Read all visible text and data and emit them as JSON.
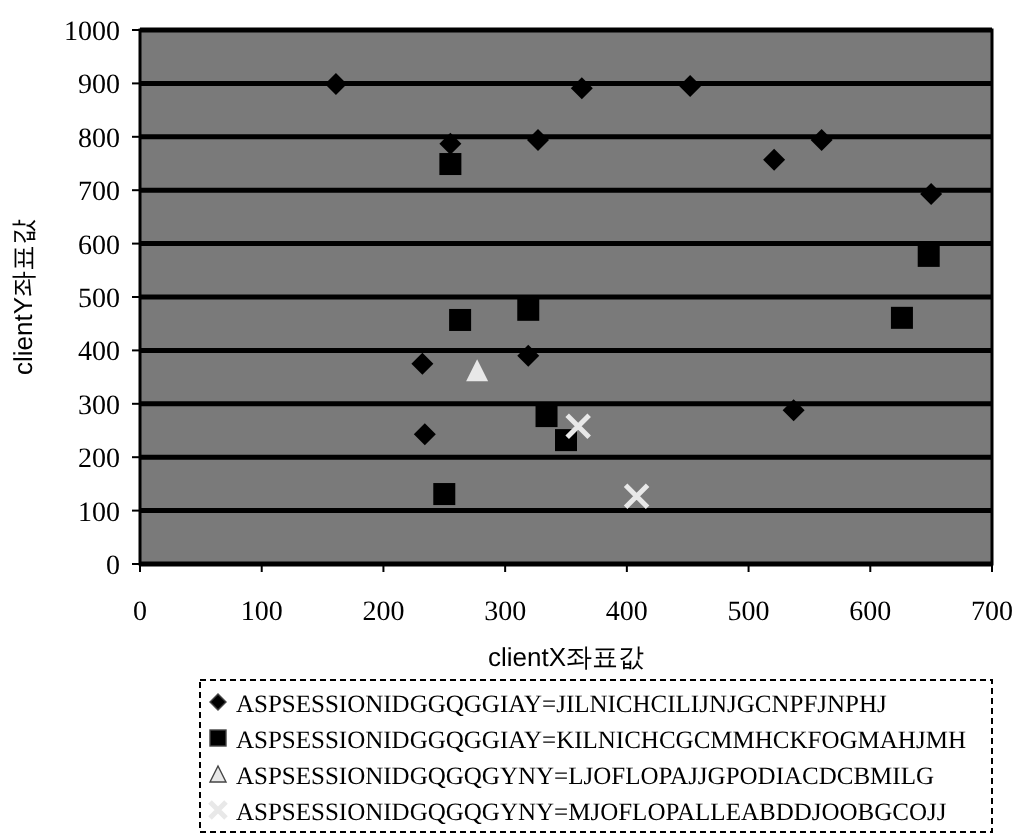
{
  "chart_data": {
    "type": "scatter",
    "xlabel": "clientX좌표값",
    "ylabel": "clientY좌표값",
    "xlim": [
      0,
      700
    ],
    "xticks": [
      0,
      100,
      200,
      300,
      400,
      500,
      600,
      700
    ],
    "ylim": [
      0,
      1000
    ],
    "yticks": [
      0,
      100,
      200,
      300,
      400,
      500,
      600,
      700,
      800,
      900,
      1000
    ],
    "grid": "y",
    "legend": "bottom",
    "series": [
      {
        "name": "ASPSESSIONIDGGQGGIAY=JILNICHCILIJNJGCNPFJNPHJ",
        "color": "#000000",
        "marker": "diamond",
        "x": [
          255,
          327,
          161,
          363,
          452,
          560,
          521,
          650,
          232,
          319,
          234,
          537
        ],
        "values": [
          787,
          794,
          899,
          891,
          895,
          794,
          757,
          693,
          375,
          390,
          243,
          288
        ]
      },
      {
        "name": "ASPSESSIONIDGGQGGIAY=KILNICHCGCMMHCKFOGMAHJMH",
        "color": "#000000",
        "marker": "square",
        "x": [
          255,
          648,
          626,
          334,
          350,
          250,
          319,
          263
        ],
        "values": [
          749,
          577,
          461,
          277,
          232,
          131,
          476,
          457
        ]
      },
      {
        "name": "ASPSESSIONIDGQGQGYNY=LJOFLOPAJJGPODIACDCBMILG",
        "color": "#e8e8e8",
        "marker": "triangle",
        "x": [
          277
        ],
        "values": [
          363
        ]
      },
      {
        "name": "ASPSESSIONIDGQGQGYNY=MJOFLOPALLEABDDJOOBGCOJJ",
        "color": "#e8e8e8",
        "marker": "cross",
        "x": [
          360,
          408
        ],
        "values": [
          258,
          127
        ]
      }
    ]
  }
}
